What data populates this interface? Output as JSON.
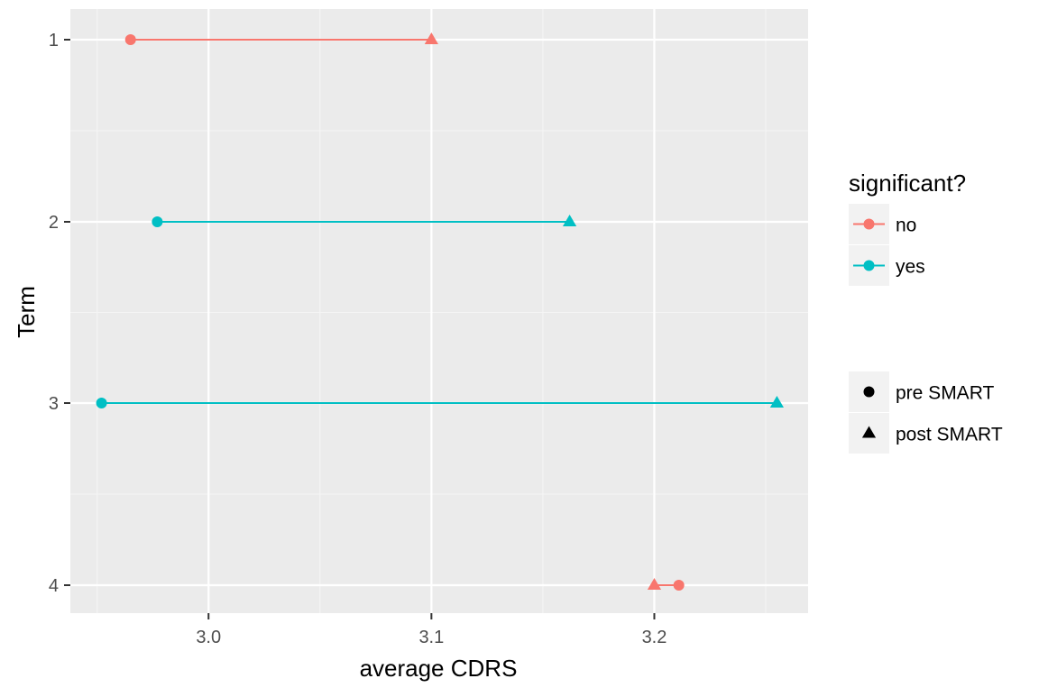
{
  "chart_data": {
    "type": "dumbbell",
    "title": "",
    "xlabel": "average CDRS",
    "ylabel": "Term",
    "xlim": [
      2.938,
      3.269
    ],
    "x_ticks": [
      3.0,
      3.1,
      3.2
    ],
    "x_tick_labels": [
      "3.0",
      "3.1",
      "3.2"
    ],
    "categories": [
      "1",
      "2",
      "3",
      "4"
    ],
    "grid": true,
    "legend_position": "right",
    "color_legend": {
      "title": "significant?",
      "entries": [
        {
          "label": "no",
          "color": "#F8766D"
        },
        {
          "label": "yes",
          "color": "#00BFC4"
        }
      ]
    },
    "shape_legend": {
      "entries": [
        {
          "label": "pre SMART",
          "shape": "circle"
        },
        {
          "label": "post SMART",
          "shape": "triangle"
        }
      ]
    },
    "rows": [
      {
        "term": "1",
        "pre": 2.965,
        "post": 3.1,
        "significant": "no"
      },
      {
        "term": "2",
        "pre": 2.977,
        "post": 3.162,
        "significant": "yes"
      },
      {
        "term": "3",
        "pre": 2.952,
        "post": 3.255,
        "significant": "yes"
      },
      {
        "term": "4",
        "pre": 3.211,
        "post": 3.2,
        "significant": "no"
      }
    ]
  }
}
